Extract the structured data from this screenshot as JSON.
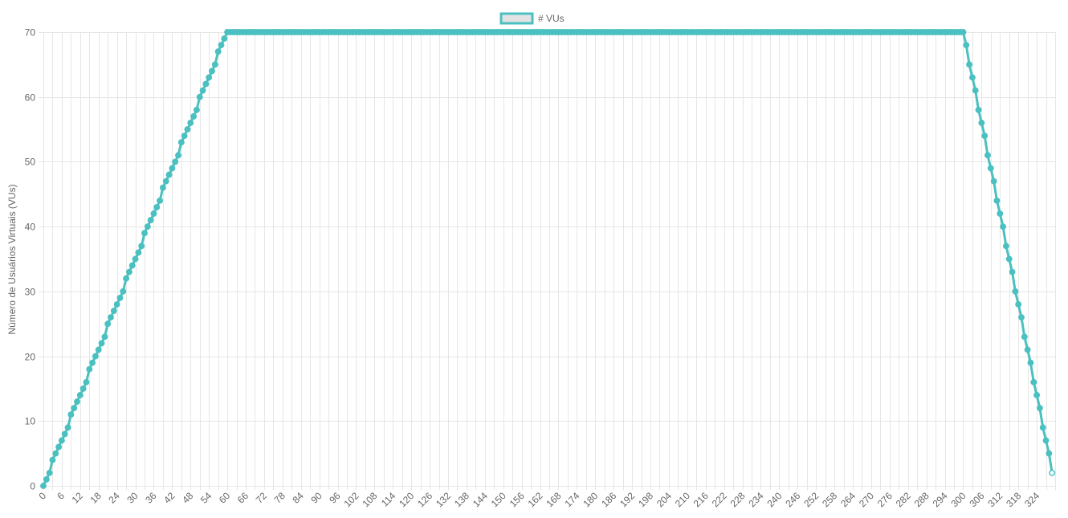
{
  "colors": {
    "series": "#4bc0c0",
    "legend_fill": "#e3e3e3",
    "grid": "#e6e6e6",
    "tick_text": "#666666"
  },
  "chart_data": {
    "type": "line",
    "title": "",
    "xlabel": "",
    "ylabel": "Número de Usuários Virtuais (VUs)",
    "legend": {
      "position": "top-center",
      "entries": [
        "# VUs"
      ]
    },
    "grid": true,
    "x_range": [
      0,
      330
    ],
    "x_tick_step": 6,
    "ylim": [
      0,
      70
    ],
    "y_ticks": [
      0,
      10,
      20,
      30,
      40,
      50,
      60,
      70
    ],
    "point_interval": 1,
    "series": [
      {
        "name": "# VUs",
        "values": [
          0,
          1,
          2,
          4,
          5,
          6,
          7,
          8,
          9,
          11,
          12,
          13,
          14,
          15,
          16,
          18,
          19,
          20,
          21,
          22,
          23,
          25,
          26,
          27,
          28,
          29,
          30,
          32,
          33,
          34,
          35,
          36,
          37,
          39,
          40,
          41,
          42,
          43,
          44,
          46,
          47,
          48,
          49,
          50,
          51,
          53,
          54,
          55,
          56,
          57,
          58,
          60,
          61,
          62,
          63,
          64,
          65,
          67,
          68,
          69,
          70,
          70,
          70,
          70,
          70,
          70,
          70,
          70,
          70,
          70,
          70,
          70,
          70,
          70,
          70,
          70,
          70,
          70,
          70,
          70,
          70,
          70,
          70,
          70,
          70,
          70,
          70,
          70,
          70,
          70,
          70,
          70,
          70,
          70,
          70,
          70,
          70,
          70,
          70,
          70,
          70,
          70,
          70,
          70,
          70,
          70,
          70,
          70,
          70,
          70,
          70,
          70,
          70,
          70,
          70,
          70,
          70,
          70,
          70,
          70,
          70,
          70,
          70,
          70,
          70,
          70,
          70,
          70,
          70,
          70,
          70,
          70,
          70,
          70,
          70,
          70,
          70,
          70,
          70,
          70,
          70,
          70,
          70,
          70,
          70,
          70,
          70,
          70,
          70,
          70,
          70,
          70,
          70,
          70,
          70,
          70,
          70,
          70,
          70,
          70,
          70,
          70,
          70,
          70,
          70,
          70,
          70,
          70,
          70,
          70,
          70,
          70,
          70,
          70,
          70,
          70,
          70,
          70,
          70,
          70,
          70,
          70,
          70,
          70,
          70,
          70,
          70,
          70,
          70,
          70,
          70,
          70,
          70,
          70,
          70,
          70,
          70,
          70,
          70,
          70,
          70,
          70,
          70,
          70,
          70,
          70,
          70,
          70,
          70,
          70,
          70,
          70,
          70,
          70,
          70,
          70,
          70,
          70,
          70,
          70,
          70,
          70,
          70,
          70,
          70,
          70,
          70,
          70,
          70,
          70,
          70,
          70,
          70,
          70,
          70,
          70,
          70,
          70,
          70,
          70,
          70,
          70,
          70,
          70,
          70,
          70,
          70,
          70,
          70,
          70,
          70,
          70,
          70,
          70,
          70,
          70,
          70,
          70,
          70,
          70,
          70,
          70,
          70,
          70,
          70,
          70,
          70,
          70,
          70,
          70,
          70,
          70,
          70,
          70,
          70,
          70,
          70,
          70,
          70,
          70,
          70,
          70,
          70,
          70,
          70,
          70,
          70,
          70,
          70,
          70,
          70,
          70,
          70,
          70,
          70,
          70,
          70,
          70,
          70,
          70,
          70,
          68,
          65,
          63,
          61,
          58,
          56,
          54,
          51,
          49,
          47,
          44,
          42,
          40,
          37,
          35,
          33,
          30,
          28,
          26,
          23,
          21,
          19,
          16,
          14,
          12,
          9,
          7,
          5,
          2
        ]
      }
    ]
  }
}
